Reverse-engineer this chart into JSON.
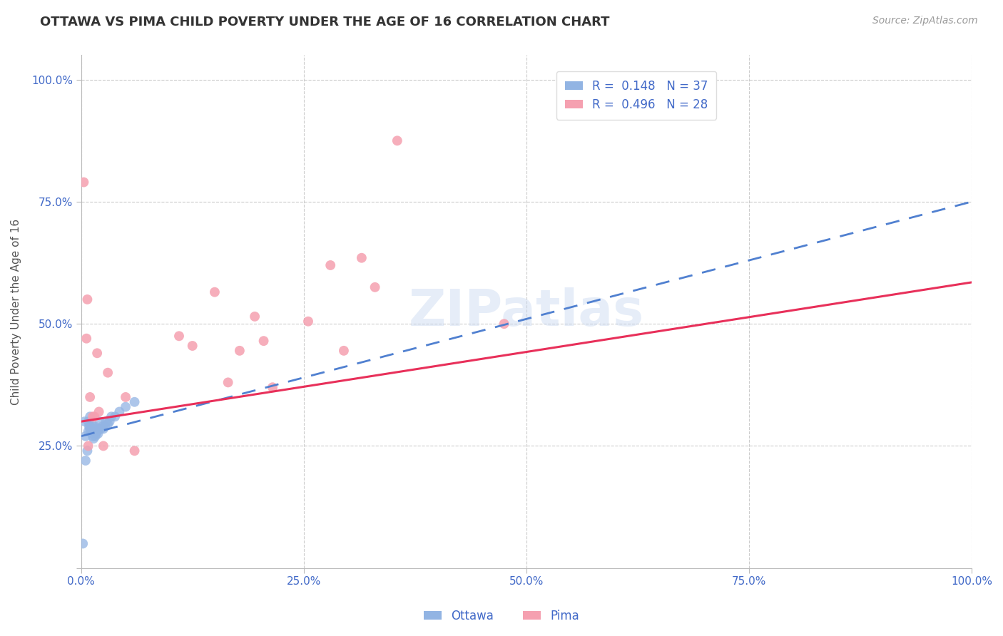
{
  "title": "OTTAWA VS PIMA CHILD POVERTY UNDER THE AGE OF 16 CORRELATION CHART",
  "source": "Source: ZipAtlas.com",
  "ylabel": "Child Poverty Under the Age of 16",
  "watermark": "ZIPatlas",
  "legend_r_ottawa": "R =  0.148",
  "legend_n_ottawa": "N = 37",
  "legend_r_pima": "R =  0.496",
  "legend_n_pima": "N = 28",
  "ottawa_color": "#92b4e3",
  "pima_color": "#f5a0b0",
  "ottawa_line_color": "#5080d0",
  "pima_line_color": "#e8305a",
  "grid_color": "#cccccc",
  "axis_label_color": "#4169c8",
  "background_color": "#ffffff",
  "ottawa_x": [
    0.002,
    0.004,
    0.005,
    0.005,
    0.007,
    0.008,
    0.008,
    0.009,
    0.01,
    0.01,
    0.01,
    0.011,
    0.012,
    0.013,
    0.013,
    0.014,
    0.015,
    0.015,
    0.016,
    0.016,
    0.017,
    0.018,
    0.019,
    0.02,
    0.021,
    0.022,
    0.024,
    0.025,
    0.027,
    0.028,
    0.03,
    0.032,
    0.034,
    0.038,
    0.043,
    0.05,
    0.06
  ],
  "ottawa_y": [
    0.05,
    0.3,
    0.27,
    0.22,
    0.24,
    0.28,
    0.3,
    0.29,
    0.285,
    0.29,
    0.31,
    0.28,
    0.285,
    0.29,
    0.27,
    0.265,
    0.28,
    0.29,
    0.285,
    0.27,
    0.275,
    0.28,
    0.275,
    0.285,
    0.3,
    0.285,
    0.29,
    0.285,
    0.29,
    0.3,
    0.295,
    0.3,
    0.31,
    0.31,
    0.32,
    0.33,
    0.34
  ],
  "pima_x": [
    0.003,
    0.006,
    0.007,
    0.008,
    0.01,
    0.013,
    0.015,
    0.018,
    0.02,
    0.025,
    0.03,
    0.05,
    0.06,
    0.11,
    0.125,
    0.15,
    0.165,
    0.178,
    0.195,
    0.205,
    0.215,
    0.255,
    0.28,
    0.295,
    0.315,
    0.33,
    0.355,
    0.475
  ],
  "pima_y": [
    0.79,
    0.47,
    0.55,
    0.25,
    0.35,
    0.31,
    0.31,
    0.44,
    0.32,
    0.25,
    0.4,
    0.35,
    0.24,
    0.475,
    0.455,
    0.565,
    0.38,
    0.445,
    0.515,
    0.465,
    0.37,
    0.505,
    0.62,
    0.445,
    0.635,
    0.575,
    0.875,
    0.5
  ],
  "ottawa_regr": [
    0.0,
    1.0,
    0.27,
    0.75
  ],
  "pima_regr": [
    0.0,
    1.0,
    0.3,
    0.585
  ],
  "xlim": [
    0.0,
    1.0
  ],
  "ylim": [
    0.0,
    1.05
  ],
  "xticks": [
    0.0,
    0.25,
    0.5,
    0.75,
    1.0
  ],
  "yticks": [
    0.0,
    0.25,
    0.5,
    0.75,
    1.0
  ],
  "xticklabels": [
    "0.0%",
    "25.0%",
    "50.0%",
    "75.0%",
    "100.0%"
  ],
  "yticklabels": [
    "",
    "25.0%",
    "50.0%",
    "75.0%",
    "100.0%"
  ],
  "title_fontsize": 13,
  "source_fontsize": 10,
  "axis_fontsize": 11,
  "tick_fontsize": 11,
  "legend_fontsize": 12,
  "marker_size": 100
}
